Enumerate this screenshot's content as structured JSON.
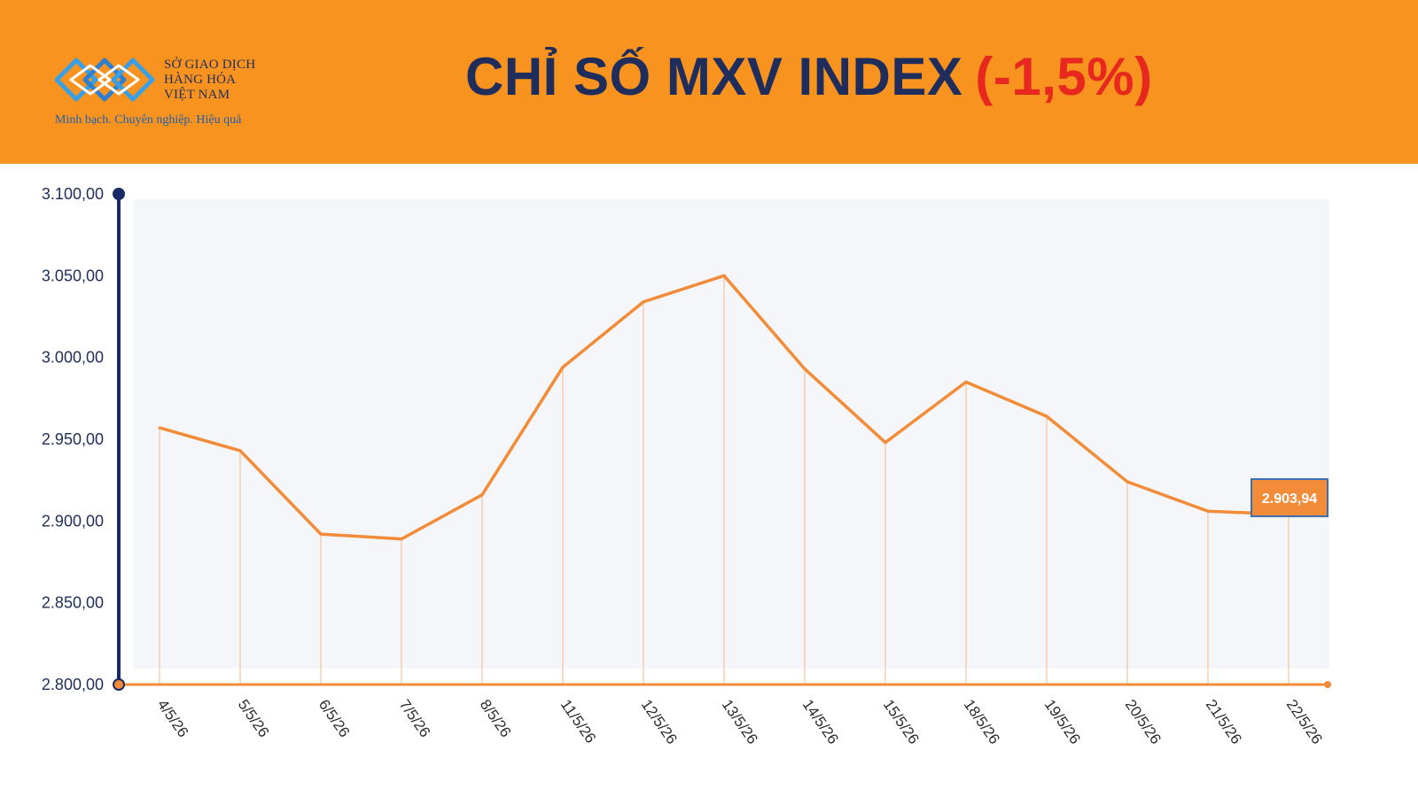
{
  "header": {
    "logo": {
      "line1": "SỞ GIAO DỊCH",
      "line2": "HÀNG HÓA",
      "line3": "VIỆT NAM",
      "tagline": "Minh bạch. Chuyên nghiệp. Hiệu quả",
      "icon": "exchange-logo-icon"
    },
    "title": "CHỈ SỐ MXV INDEX",
    "change": "(-1,5%)"
  },
  "colors": {
    "header_bg": "#f7931e",
    "title_text": "#1f2d5c",
    "change_text": "#e8281e",
    "line": "#f28c38",
    "axis_y": "#1a2a66",
    "axis_x": "#f28c38",
    "label_box": "#f28c38",
    "label_border": "#3b6fb6"
  },
  "chart_data": {
    "type": "line",
    "categories": [
      "4/5/26",
      "5/5/26",
      "6/5/26",
      "7/5/26",
      "8/5/26",
      "11/5/26",
      "12/5/26",
      "13/5/26",
      "14/5/26",
      "15/5/26",
      "18/5/26",
      "19/5/26",
      "20/5/26",
      "21/5/26",
      "22/5/26"
    ],
    "values": [
      2957,
      2943,
      2892,
      2889,
      2916,
      2994,
      3034,
      3050,
      2993,
      2948,
      2985,
      2964,
      2924,
      2906,
      2903.94
    ],
    "ylim": [
      2800,
      3100
    ],
    "yticks": [
      "2.800,00",
      "2.850,00",
      "2.900,00",
      "2.950,00",
      "3.000,00",
      "3.050,00",
      "3.100,00"
    ],
    "ytick_values": [
      2800,
      2850,
      2900,
      2950,
      3000,
      3050,
      3100
    ],
    "last_value_label": "2.903,94",
    "grid": false,
    "drop_lines": true
  }
}
